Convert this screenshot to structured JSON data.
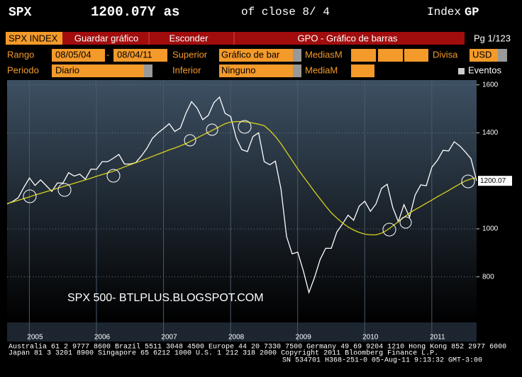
{
  "header": {
    "ticker": "SPX",
    "price": "1200.07Y as",
    "of_close": "of close  8/ 4",
    "index": "Index",
    "function": "GP"
  },
  "toolbar": {
    "security": "SPX INDEX",
    "save": "Guardar gráfico",
    "hide": "Esconder",
    "title": "GPO - Gráfico de barras",
    "page": "Pg 1/123"
  },
  "form": {
    "range_label": "Rango",
    "range_start": "08/05/04",
    "range_sep": "-",
    "range_end": "08/04/11",
    "upper_label": "Superior",
    "upper_value": "Gráfico de bar",
    "ma_label": "MediasM",
    "currency_label": "Divisa",
    "currency_value": "USD",
    "period_label": "Periodo",
    "period_value": "Diario",
    "lower_label": "Inferior",
    "lower_value": "Ninguno",
    "ma_single_label": "MediaM",
    "events_label": "Eventos"
  },
  "chart_data": {
    "type": "line",
    "annotation": "SPX 500- BTLPLUS.BLOGSPOT.COM",
    "last_price_label": "1200.07",
    "categories": [
      null,
      null,
      null,
      null,
      null,
      "2005",
      null,
      null,
      null,
      null,
      null,
      null,
      null,
      null,
      null,
      null,
      null,
      "2006",
      null,
      null,
      null,
      null,
      null,
      null,
      null,
      null,
      null,
      null,
      null,
      "2007",
      null,
      null,
      null,
      null,
      null,
      null,
      null,
      null,
      null,
      null,
      null,
      "2008",
      null,
      null,
      null,
      null,
      null,
      null,
      null,
      null,
      null,
      null,
      null,
      "2009",
      null,
      null,
      null,
      null,
      null,
      null,
      null,
      null,
      null,
      null,
      null,
      "2010",
      null,
      null,
      null,
      null,
      null,
      null,
      null,
      null,
      null,
      null,
      null,
      "2011",
      null,
      null,
      null,
      null,
      null,
      null,
      null
    ],
    "series": [
      {
        "name": "SPX",
        "color": "#ffffff",
        "values": [
          1104,
          1114,
          1130,
          1173,
          1212,
          1181,
          1204,
          1180,
          1156,
          1191,
          1191,
          1234,
          1220,
          1228,
          1207,
          1249,
          1248,
          1280,
          1280,
          1294,
          1310,
          1270,
          1270,
          1276,
          1303,
          1335,
          1377,
          1400,
          1418,
          1438,
          1406,
          1420,
          1482,
          1530,
          1503,
          1455,
          1473,
          1526,
          1549,
          1481,
          1468,
          1378,
          1330,
          1322,
          1385,
          1400,
          1280,
          1267,
          1282,
          1166,
          968,
          896,
          903,
          825,
          735,
          797,
          872,
          919,
          919,
          987,
          1020,
          1057,
          1036,
          1095,
          1115,
          1073,
          1104,
          1169,
          1186,
          1089,
          1030,
          1101,
          1049,
          1141,
          1183,
          1180,
          1257,
          1286,
          1327,
          1325,
          1363,
          1345,
          1320,
          1292,
          1200.07
        ]
      },
      {
        "name": "MediaM",
        "color": "#d8d020",
        "values": [
          1105,
          1112,
          1119,
          1126,
          1133,
          1141,
          1148,
          1155,
          1162,
          1169,
          1176,
          1183,
          1190,
          1197,
          1204,
          1211,
          1219,
          1226,
          1233,
          1240,
          1249,
          1258,
          1267,
          1275,
          1284,
          1293,
          1302,
          1311,
          1320,
          1329,
          1337,
          1346,
          1355,
          1367,
          1379,
          1391,
          1402,
          1414,
          1426,
          1438,
          1445,
          1447,
          1447,
          1445,
          1441,
          1436,
          1430,
          1410,
          1385,
          1355,
          1320,
          1285,
          1250,
          1218,
          1187,
          1155,
          1125,
          1095,
          1067,
          1045,
          1025,
          1008,
          995,
          985,
          978,
          975,
          975,
          982,
          995,
          1012,
          1030,
          1048,
          1066,
          1080,
          1093,
          1107,
          1120,
          1134,
          1147,
          1160,
          1174,
          1187,
          1200,
          1208,
          1213
        ]
      }
    ],
    "ylim": [
      610,
      1620
    ],
    "yticks": [
      800,
      1000,
      1400,
      1600
    ],
    "grid": true
  },
  "footer": {
    "lines": [
      "Australia 61 2 9777 8600 Brazil 5511 3048 4500 Europe 44 20 7330 7500 Germany 49 69 9204 1210 Hong Kong 852 2977 6000",
      "Japan 81 3 3201 8900         Singapore 65 6212 1000         U.S. 1 212 318 2000          Copyright 2011 Bloomberg Finance L.P.",
      "SN 534701 H368-251-0 05-Aug-11  9:13:32   GMT-3:00"
    ]
  }
}
